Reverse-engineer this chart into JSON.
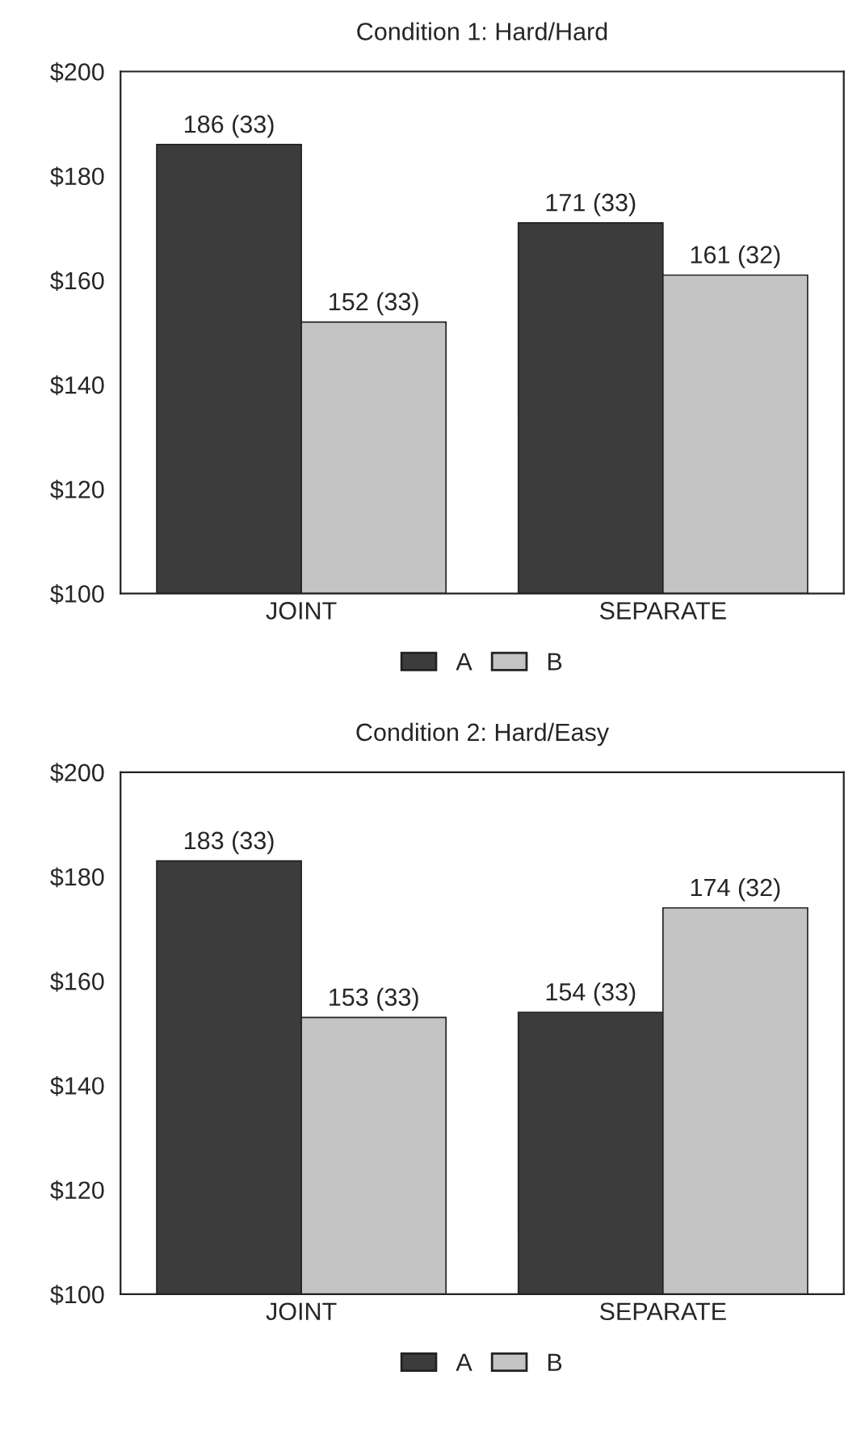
{
  "chart_data": [
    {
      "type": "bar",
      "title": "Condition 1: Hard/Hard",
      "categories": [
        "JOINT",
        "SEPARATE"
      ],
      "series": [
        {
          "name": "A",
          "color": "#3c3c3c",
          "values": [
            186,
            171
          ],
          "value_labels": [
            "186 (33)",
            "171 (33)"
          ]
        },
        {
          "name": "B",
          "color": "#c4c4c4",
          "values": [
            152,
            161
          ],
          "value_labels": [
            "152 (33)",
            "161 (32)"
          ]
        }
      ],
      "ylim": [
        100,
        200
      ],
      "yticks": [
        {
          "value": 100,
          "label": "$100"
        },
        {
          "value": 120,
          "label": "$120"
        },
        {
          "value": 140,
          "label": "$140"
        },
        {
          "value": 160,
          "label": "$160"
        },
        {
          "value": 180,
          "label": "$180"
        },
        {
          "value": 200,
          "label": "$200"
        }
      ],
      "legend": "bottom",
      "grid": false
    },
    {
      "type": "bar",
      "title": "Condition 2: Hard/Easy",
      "categories": [
        "JOINT",
        "SEPARATE"
      ],
      "series": [
        {
          "name": "A",
          "color": "#3c3c3c",
          "values": [
            183,
            154
          ],
          "value_labels": [
            "183 (33)",
            "154 (33)"
          ]
        },
        {
          "name": "B",
          "color": "#c4c4c4",
          "values": [
            153,
            174
          ],
          "value_labels": [
            "153 (33)",
            "174 (32)"
          ]
        }
      ],
      "ylim": [
        100,
        200
      ],
      "yticks": [
        {
          "value": 100,
          "label": "$100"
        },
        {
          "value": 120,
          "label": "$120"
        },
        {
          "value": 140,
          "label": "$140"
        },
        {
          "value": 160,
          "label": "$160"
        },
        {
          "value": 180,
          "label": "$180"
        },
        {
          "value": 200,
          "label": "$200"
        }
      ],
      "legend": "bottom",
      "grid": false
    }
  ]
}
